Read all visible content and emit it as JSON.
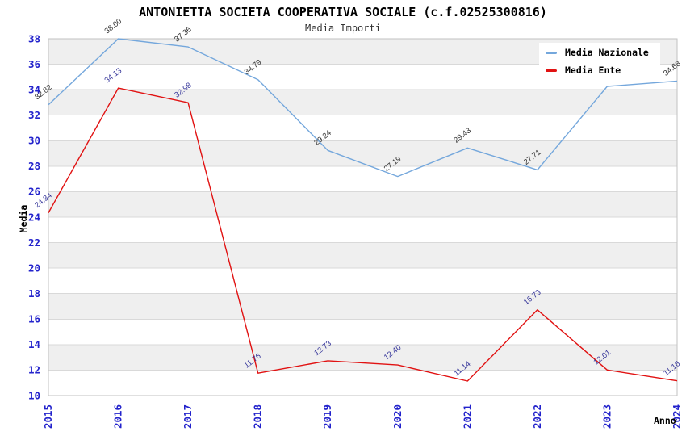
{
  "header": {
    "title": "ANTONIETTA SOCIETA COOPERATIVA SOCIALE (c.f.02525300816)",
    "subtitle": "Media Importi"
  },
  "chart_data": {
    "type": "line",
    "title": "ANTONIETTA SOCIETA COOPERATIVA SOCIALE (c.f.02525300816)",
    "subtitle": "Media Importi",
    "xlabel": "Anno",
    "ylabel": "Media",
    "categories": [
      "2015",
      "2016",
      "2017",
      "2018",
      "2019",
      "2020",
      "2021",
      "2022",
      "2023",
      "2024"
    ],
    "series": [
      {
        "name": "Media Nazionale",
        "color": "#74a7dc",
        "label_color": "#333333",
        "values": [
          32.82,
          38.0,
          37.36,
          34.79,
          29.24,
          27.19,
          29.43,
          27.71,
          34.26,
          34.68
        ],
        "labels": [
          "32.82",
          "38.00",
          "37.36",
          "34.79",
          "29.24",
          "27.19",
          "29.43",
          "27.71",
          "",
          "34.68"
        ]
      },
      {
        "name": "Media Ente",
        "color": "#e11212",
        "label_color": "#333399",
        "values": [
          24.34,
          34.13,
          32.98,
          11.76,
          12.73,
          12.4,
          11.14,
          16.73,
          12.01,
          11.16
        ],
        "labels": [
          "24.34",
          "34.13",
          "32.98",
          "11.76",
          "12.73",
          "12.40",
          "11.14",
          "16.73",
          "12.01",
          "11.16"
        ]
      }
    ],
    "ylim": [
      10,
      38
    ],
    "y_ticks": [
      10,
      12,
      14,
      16,
      18,
      20,
      22,
      24,
      26,
      28,
      30,
      32,
      34,
      36,
      38
    ],
    "grid": true,
    "band_fill": "#efefef",
    "grid_color": "#d9d9d9",
    "border_color": "#c2c2c2",
    "tick_color": "#2323cc",
    "legend_position": "top-right"
  }
}
